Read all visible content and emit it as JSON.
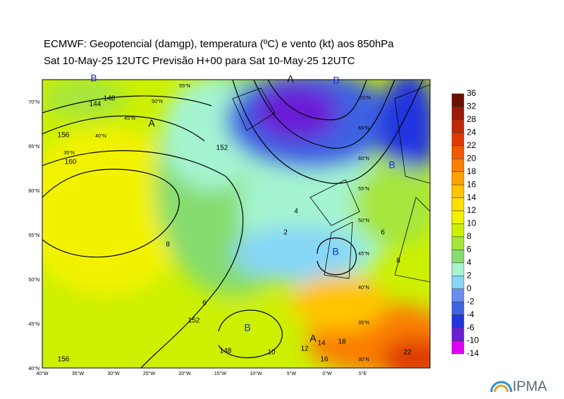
{
  "header": {
    "title": "ECMWF:  Geopotencial (damgp), temperatura (ºC) e vento (kt) aos 850hPa",
    "subtitle": "Sat 10-May-25 12UTC Previsão H+00 para Sat 10-May-25 12UTC"
  },
  "colorbar": {
    "labels": [
      36,
      32,
      28,
      24,
      22,
      20,
      18,
      16,
      14,
      12,
      10,
      8,
      6,
      4,
      2,
      0,
      -2,
      -4,
      -6,
      -10,
      -14
    ],
    "colors": [
      "#6b1000",
      "#9a1a06",
      "#c02808",
      "#e03a00",
      "#f25800",
      "#fa7e00",
      "#ffa200",
      "#ffc400",
      "#ffe000",
      "#f2f200",
      "#ccf000",
      "#a6e63c",
      "#86dc6e",
      "#a4f4d0",
      "#86d6f6",
      "#6a8cf0",
      "#3e62e2",
      "#2236e0",
      "#6a1ed6",
      "#e000f4"
    ]
  },
  "map": {
    "lon_labels": [
      "40°W",
      "35°W",
      "30°W",
      "25°W",
      "20°W",
      "15°W",
      "10°W",
      "5°W",
      "0°W",
      "5°E"
    ],
    "lat_labels": [
      "70°N",
      "65°N",
      "60°N",
      "55°N",
      "50°N",
      "45°N",
      "40°N"
    ],
    "grid_labels": [
      "55°N",
      "50°N",
      "45°N",
      "40°N",
      "35°N",
      "70°N",
      "65°N",
      "60°N",
      "55°N",
      "50°N",
      "45°N",
      "40°N",
      "35°N",
      "30°N"
    ],
    "contour_labels": [
      "144",
      "148",
      "152",
      "156",
      "160",
      "148",
      "152",
      "156",
      "8",
      "6",
      "2",
      "4",
      "12",
      "14",
      "16",
      "18",
      "10",
      "22",
      "8",
      "6"
    ],
    "pressure_labels": [
      "B",
      "A",
      "B",
      "A",
      "B",
      "B",
      "A",
      "B"
    ]
  },
  "logo": {
    "text": "IPMA"
  }
}
